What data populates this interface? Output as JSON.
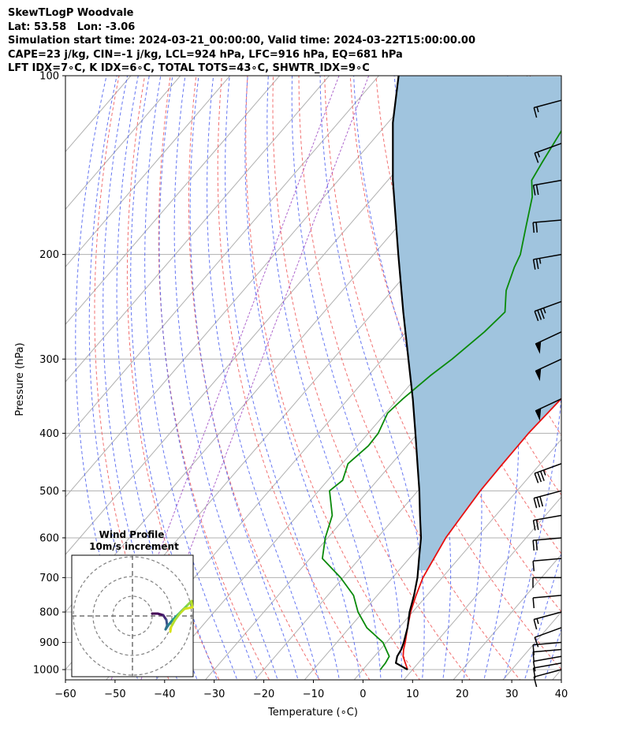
{
  "header": {
    "line1": "SkewTLogP Woodvale",
    "line2": "Lat: 53.58   Lon: -3.06",
    "line3": "Simulation start time: 2024-03-21_00:00:00, Valid time: 2024-03-22T15:00:00.00",
    "line4": "CAPE=23 j/kg, CIN=-1 j/kg, LCL=924 hPa, LFC=916 hPa, EQ=681 hPa",
    "line5": "LFT IDX=7∘C, K IDX=6∘C, TOTAL TOTS=43∘C, SHWTR_IDX=9∘C"
  },
  "chart_data": {
    "type": "line",
    "xlabel": "Temperature (∘C)",
    "ylabel": "Pressure (hPa)",
    "xlim": [
      -60,
      40
    ],
    "ylim": [
      1050,
      100
    ],
    "yscale": "log",
    "grid": true,
    "x_ticks": [
      -60,
      -50,
      -40,
      -30,
      -20,
      -10,
      0,
      10,
      20,
      30,
      40
    ],
    "y_ticks": [
      1000,
      900,
      800,
      700,
      600,
      500,
      400,
      300,
      200,
      100
    ],
    "series": [
      {
        "role": "temperature",
        "color": "#e81010",
        "points": [
          [
            1000,
            9.0
          ],
          [
            975,
            7.4
          ],
          [
            950,
            5.8
          ],
          [
            925,
            4.7
          ],
          [
            900,
            3.8
          ],
          [
            850,
            1.7
          ],
          [
            800,
            -0.4
          ],
          [
            750,
            -2.2
          ],
          [
            700,
            -3.9
          ],
          [
            650,
            -5.0
          ],
          [
            600,
            -6.2
          ],
          [
            550,
            -6.8
          ],
          [
            500,
            -7.4
          ],
          [
            450,
            -7.6
          ],
          [
            400,
            -7.7
          ],
          [
            350,
            -7.1
          ],
          [
            300,
            -7.4
          ],
          [
            270,
            -7.1
          ],
          [
            250,
            -6.0
          ],
          [
            230,
            -4.0
          ],
          [
            210,
            -2.0
          ],
          [
            200,
            -1.5
          ],
          [
            180,
            -1.5
          ],
          [
            160,
            -1.5
          ],
          [
            140,
            -1.5
          ],
          [
            120,
            -1.5
          ],
          [
            110,
            -1.5
          ],
          [
            100,
            -1.2
          ]
        ]
      },
      {
        "role": "dewpoint",
        "color": "#0a8a0a",
        "points": [
          [
            1000,
            3.5
          ],
          [
            975,
            3.4
          ],
          [
            950,
            3.0
          ],
          [
            900,
            -0.7
          ],
          [
            850,
            -6.5
          ],
          [
            800,
            -11.0
          ],
          [
            750,
            -14.8
          ],
          [
            700,
            -20.5
          ],
          [
            650,
            -27.5
          ],
          [
            600,
            -30.5
          ],
          [
            550,
            -33.0
          ],
          [
            500,
            -37.8
          ],
          [
            480,
            -37.0
          ],
          [
            450,
            -38.8
          ],
          [
            420,
            -37.8
          ],
          [
            400,
            -38.0
          ],
          [
            370,
            -39.6
          ],
          [
            350,
            -39.0
          ],
          [
            320,
            -37.5
          ],
          [
            300,
            -36.0
          ],
          [
            270,
            -34.2
          ],
          [
            250,
            -33.5
          ],
          [
            230,
            -37.0
          ],
          [
            210,
            -39.4
          ],
          [
            200,
            -40.4
          ],
          [
            180,
            -44.0
          ],
          [
            160,
            -48.0
          ],
          [
            150,
            -51.0
          ],
          [
            140,
            -52.0
          ],
          [
            120,
            -54.0
          ],
          [
            100,
            -57.0
          ]
        ]
      },
      {
        "role": "parcel",
        "color": "#000000",
        "points": [
          [
            1000,
            9.0
          ],
          [
            975,
            5.5
          ],
          [
            950,
            4.6
          ],
          [
            924,
            4.2
          ],
          [
            900,
            3.5
          ],
          [
            850,
            1.7
          ],
          [
            800,
            -0.6
          ],
          [
            750,
            -2.6
          ],
          [
            700,
            -5.0
          ],
          [
            650,
            -8.0
          ],
          [
            600,
            -11.2
          ],
          [
            550,
            -15.3
          ],
          [
            500,
            -19.7
          ],
          [
            450,
            -24.8
          ],
          [
            400,
            -30.5
          ],
          [
            350,
            -37.0
          ],
          [
            300,
            -44.8
          ],
          [
            250,
            -54.0
          ],
          [
            200,
            -65.0
          ],
          [
            150,
            -79.0
          ],
          [
            120,
            -89.0
          ],
          [
            100,
            -96.0
          ]
        ]
      }
    ],
    "cape_fill_color": "#a0c4de"
  },
  "inset": {
    "title": "Wind Profile",
    "subtitle": "10m/s increment"
  },
  "wind_barbs": [
    {
      "p": 1000,
      "dir": 255,
      "spd": 10
    },
    {
      "p": 975,
      "dir": 260,
      "spd": 10
    },
    {
      "p": 950,
      "dir": 260,
      "spd": 10
    },
    {
      "p": 925,
      "dir": 265,
      "spd": 10
    },
    {
      "p": 900,
      "dir": 265,
      "spd": 10
    },
    {
      "p": 850,
      "dir": 250,
      "spd": 10
    },
    {
      "p": 800,
      "dir": 255,
      "spd": 15
    },
    {
      "p": 750,
      "dir": 265,
      "spd": 10
    },
    {
      "p": 700,
      "dir": 270,
      "spd": 10
    },
    {
      "p": 650,
      "dir": 265,
      "spd": 10
    },
    {
      "p": 600,
      "dir": 265,
      "spd": 20
    },
    {
      "p": 550,
      "dir": 260,
      "spd": 20
    },
    {
      "p": 500,
      "dir": 255,
      "spd": 30
    },
    {
      "p": 450,
      "dir": 250,
      "spd": 35
    },
    {
      "p": 350,
      "dir": 245,
      "spd": 50
    },
    {
      "p": 300,
      "dir": 245,
      "spd": 50
    },
    {
      "p": 270,
      "dir": 245,
      "spd": 50
    },
    {
      "p": 240,
      "dir": 250,
      "spd": 35
    },
    {
      "p": 200,
      "dir": 260,
      "spd": 25
    },
    {
      "p": 175,
      "dir": 265,
      "spd": 20
    },
    {
      "p": 150,
      "dir": 260,
      "spd": 20
    },
    {
      "p": 130,
      "dir": 250,
      "spd": 15
    },
    {
      "p": 110,
      "dir": 255,
      "spd": 15
    }
  ]
}
